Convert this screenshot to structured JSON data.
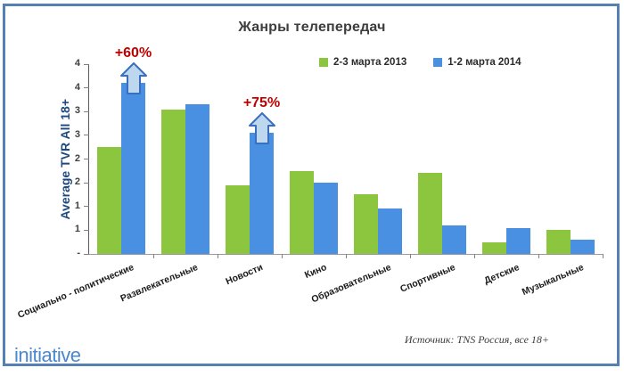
{
  "title": "Жанры телепередач",
  "chart_data": {
    "type": "bar",
    "title": "Жанры телепередач",
    "xlabel": "",
    "ylabel": "Average TVR All 18+",
    "ylim": [
      0,
      4
    ],
    "tick_step": 0.5,
    "y_tick_labels": [
      "-",
      "1",
      "1",
      "2",
      "2",
      "3",
      "3",
      "4",
      "4"
    ],
    "grid": false,
    "legend_position": "top-right",
    "categories": [
      "Социально - политические",
      "Развлекательные",
      "Новости",
      "Кино",
      "Образовательные",
      "Спортивные",
      "Детские",
      "Музыкальные"
    ],
    "series": [
      {
        "name": "2-3 марта 2013",
        "color": "#8cc63f",
        "values": [
          2.25,
          3.05,
          1.45,
          1.75,
          1.25,
          1.7,
          0.25,
          0.5
        ]
      },
      {
        "name": "1-2 марта 2014",
        "color": "#4a90e2",
        "values": [
          3.6,
          3.15,
          2.55,
          1.5,
          0.95,
          0.6,
          0.55,
          0.3
        ]
      }
    ],
    "annotations": [
      {
        "label": "+60%",
        "category_index": 0,
        "series_index": 1
      },
      {
        "label": "+75%",
        "category_index": 2,
        "series_index": 1
      }
    ]
  },
  "footer": {
    "source": "Источник: TNS Россия, все 18+",
    "logo": "initiative"
  },
  "colors": {
    "frame_border": "#5580b3",
    "bar_2013": "#8cc63f",
    "bar_2014": "#4a90e2",
    "annotation_text": "#c00000",
    "arrow_fill": "#bdd7ee",
    "arrow_stroke": "#3a6fc0",
    "y_axis_title": "#1f497d",
    "logo_blue": "#4a87cc"
  }
}
